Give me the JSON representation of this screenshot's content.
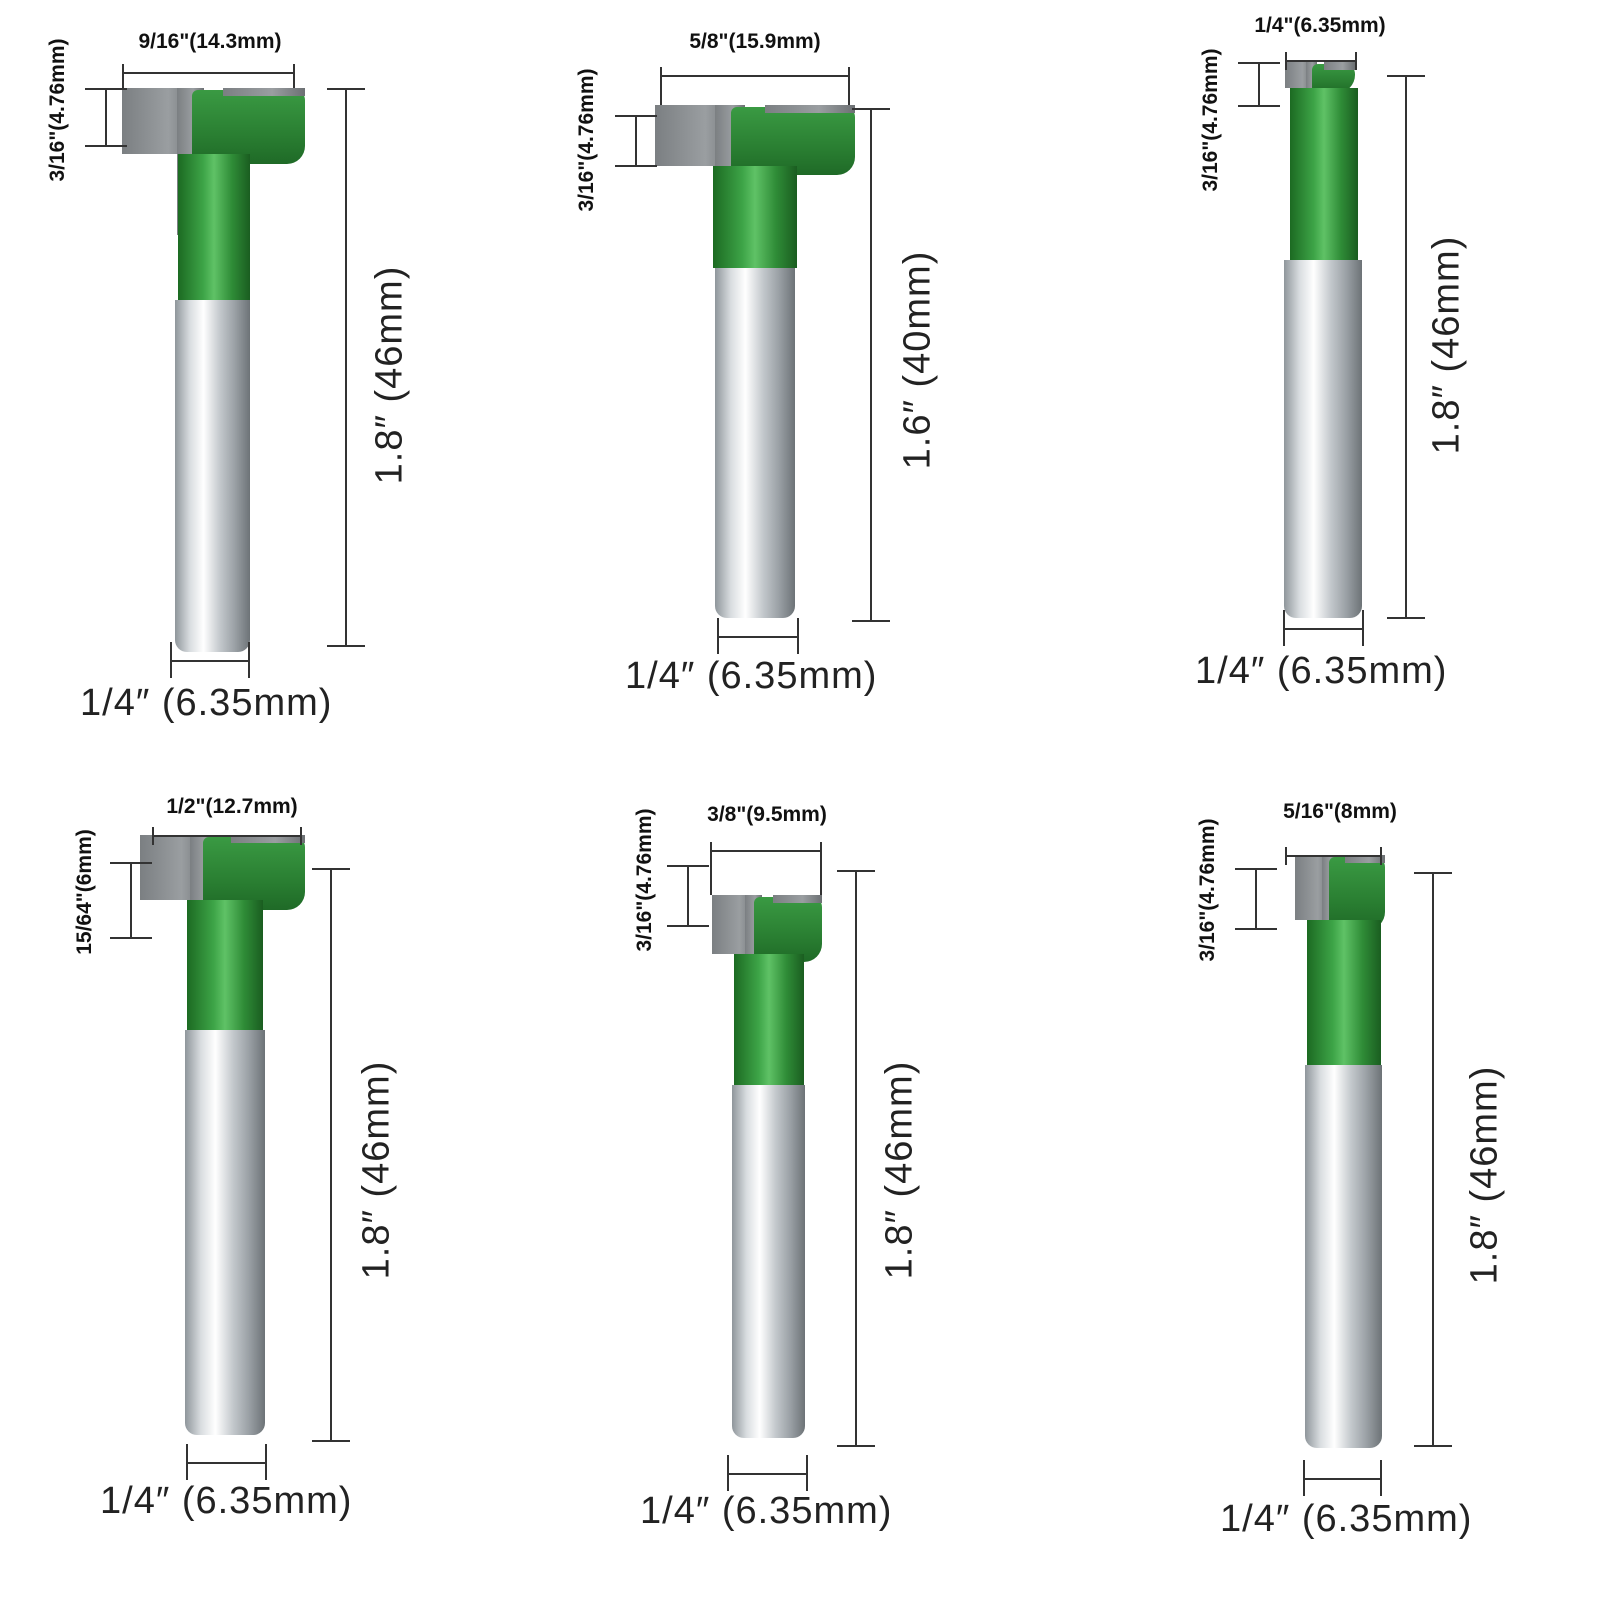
{
  "colors": {
    "cutter_body": "#2f8c37",
    "carbide": "#8a8e91",
    "shank": "#c9ced2",
    "dimension_line": "#333333"
  },
  "bits": [
    {
      "cutter_width": "9/16\"(14.3mm)",
      "cutter_height": "3/16\"(4.76mm)",
      "overall_length": "1.8″  (46mm)",
      "shank_diameter": "1/4″  (6.35mm)"
    },
    {
      "cutter_width": "5/8\"(15.9mm)",
      "cutter_height": "3/16\"(4.76mm)",
      "overall_length": "1.6″  (40mm)",
      "shank_diameter": "1/4″  (6.35mm)"
    },
    {
      "cutter_width": "1/4\"(6.35mm)",
      "cutter_height": "3/16\"(4.76mm)",
      "overall_length": "1.8″  (46mm)",
      "shank_diameter": "1/4″  (6.35mm)"
    },
    {
      "cutter_width": "1/2\"(12.7mm)",
      "cutter_height": "15/64\"(6mm)",
      "overall_length": "1.8″  (46mm)",
      "shank_diameter": "1/4″  (6.35mm)"
    },
    {
      "cutter_width": "3/8\"(9.5mm)",
      "cutter_height": "3/16\"(4.76mm)",
      "overall_length": "1.8″  (46mm)",
      "shank_diameter": "1/4″  (6.35mm)"
    },
    {
      "cutter_width": "5/16\"(8mm)",
      "cutter_height": "3/16\"(4.76mm)",
      "overall_length": "1.8″  (46mm)",
      "shank_diameter": "1/4″  (6.35mm)"
    }
  ]
}
